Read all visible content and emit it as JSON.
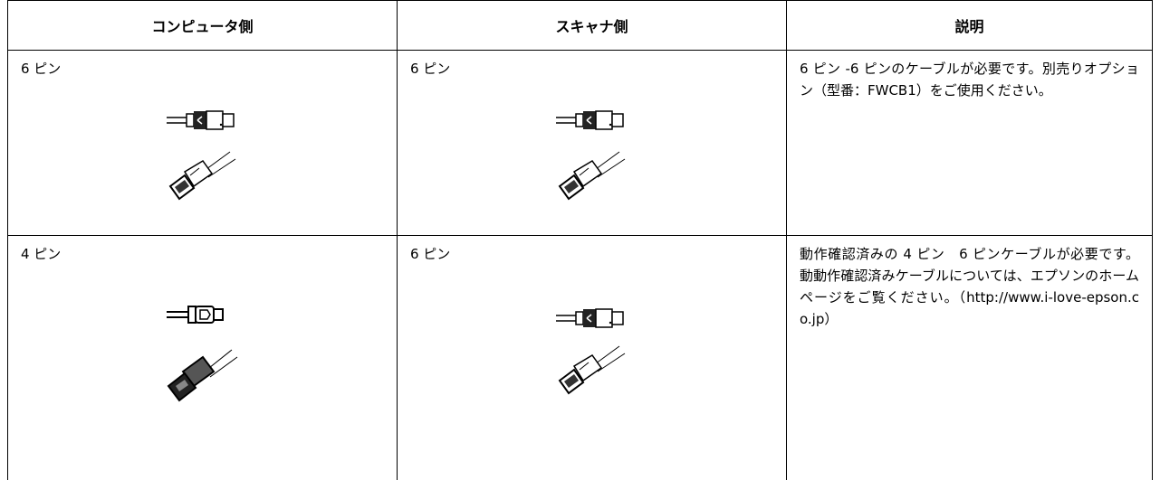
{
  "table": {
    "header": [
      "コンピュータ側",
      "スキャナ側",
      "説明"
    ],
    "rows": [
      [
        "6 ピン",
        "6 ピン",
        "6 ピン -6 ピンのケーブルが必要です。別売りオプション（型番：FWCB1）をご使用ください。"
      ],
      [
        "4 ピン",
        "6 ピン",
        "動作確認済みの 4 ピン　6 ピンケーブルが必要です。動動作確認済みケーブルについては、エプソンのホームページをご覧ください。（http://www.i-love-epson.co.jp）"
      ]
    ]
  }
}
